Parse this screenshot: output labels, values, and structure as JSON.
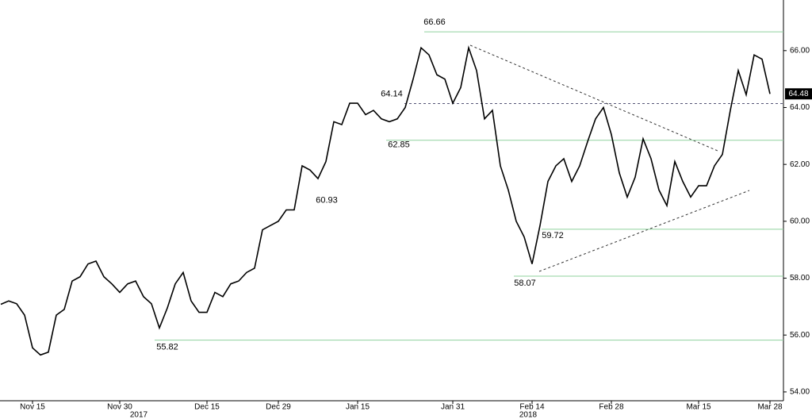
{
  "chart_data": {
    "type": "line",
    "categories": [
      null,
      null,
      null,
      null,
      "Nov 15",
      null,
      null,
      null,
      null,
      null,
      null,
      null,
      null,
      null,
      null,
      "Nov 30",
      null,
      null,
      null,
      null,
      null,
      null,
      null,
      null,
      null,
      null,
      "Dec 15",
      null,
      null,
      null,
      null,
      null,
      null,
      null,
      null,
      "Dec 29",
      null,
      null,
      null,
      null,
      null,
      null,
      null,
      null,
      null,
      "Jan 15",
      null,
      null,
      null,
      null,
      null,
      null,
      null,
      null,
      null,
      null,
      null,
      "Jan 31",
      null,
      null,
      null,
      null,
      null,
      null,
      null,
      null,
      null,
      "Feb 14",
      null,
      null,
      null,
      null,
      null,
      null,
      null,
      null,
      null,
      "Feb 28",
      null,
      null,
      null,
      null,
      null,
      null,
      null,
      null,
      null,
      null,
      "Mar 15",
      null,
      null,
      null,
      null,
      null,
      null,
      null,
      null,
      "Mar 28"
    ],
    "values": [
      57.08,
      57.2,
      57.1,
      56.7,
      55.55,
      55.3,
      55.4,
      56.7,
      56.9,
      57.9,
      58.05,
      58.5,
      58.6,
      58.05,
      57.8,
      57.5,
      57.8,
      57.9,
      57.35,
      57.1,
      56.25,
      56.95,
      57.8,
      58.2,
      57.2,
      56.8,
      56.8,
      57.5,
      57.35,
      57.8,
      57.9,
      58.2,
      58.35,
      59.7,
      59.85,
      60.0,
      60.4,
      60.4,
      61.95,
      61.8,
      61.5,
      62.1,
      63.5,
      63.4,
      64.15,
      64.15,
      63.75,
      63.9,
      63.6,
      63.5,
      63.6,
      64.0,
      65.0,
      66.1,
      65.85,
      65.15,
      65.0,
      64.15,
      64.7,
      66.1,
      65.3,
      63.6,
      63.9,
      61.95,
      61.1,
      60.0,
      59.45,
      58.5,
      59.85,
      61.4,
      61.95,
      62.2,
      61.4,
      61.95,
      62.8,
      63.6,
      64.0,
      63.05,
      61.7,
      60.85,
      61.55,
      62.9,
      62.2,
      61.1,
      60.55,
      62.1,
      61.4,
      60.85,
      61.25,
      61.25,
      61.95,
      62.35,
      63.9,
      65.3,
      64.45,
      65.85,
      65.7,
      64.48
    ],
    "color": "#000000",
    "year_labels": [
      "2017",
      "2018"
    ],
    "ylim": [
      53.69,
      67.78
    ],
    "yticks": [
      {
        "value": 54,
        "label": "54.00"
      },
      {
        "value": 56,
        "label": "56.00"
      },
      {
        "value": 58,
        "label": "58.00"
      },
      {
        "value": 60,
        "label": "60.00"
      },
      {
        "value": 62,
        "label": "62.00"
      },
      {
        "value": 64,
        "label": "64.00"
      },
      {
        "value": 66,
        "label": "66.00"
      }
    ],
    "levels": [
      66.66,
      64.14,
      62.85,
      59.72,
      58.07,
      55.82
    ],
    "level_color": "#8fd19e",
    "point_labels": [
      60.93
    ]
  }
}
